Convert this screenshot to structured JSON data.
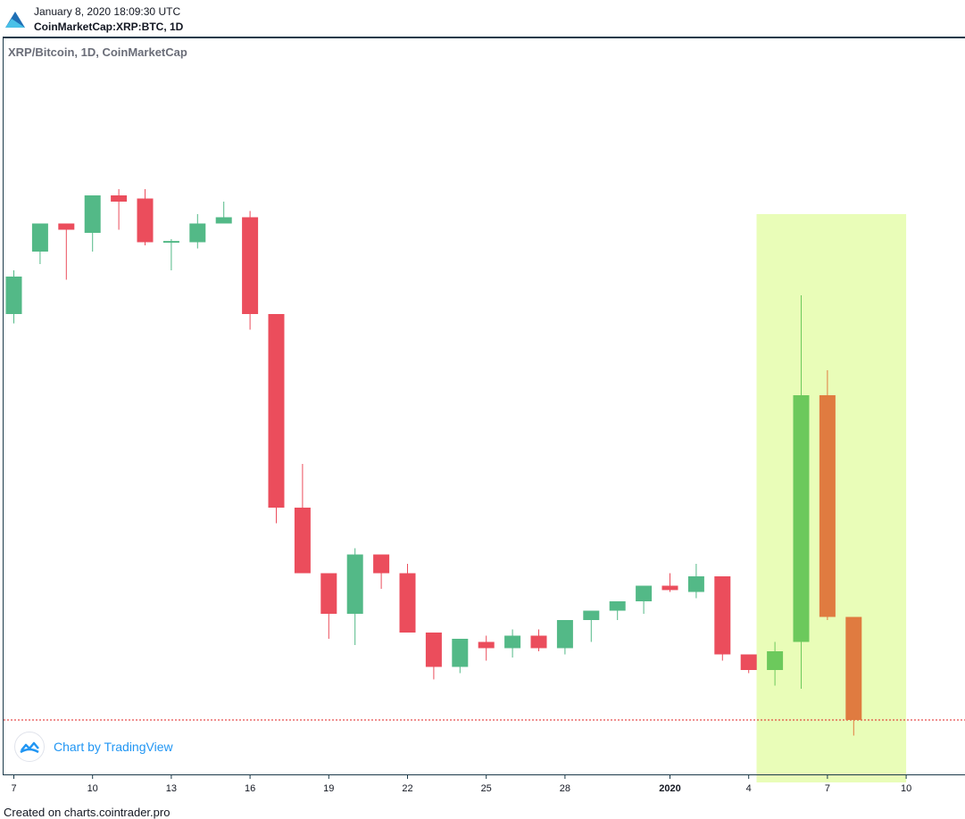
{
  "header": {
    "datetime": "January 8, 2020 18:09:30 UTC",
    "symbol": "CoinMarketCap:XRP:BTC, 1D"
  },
  "footer": {
    "text": "Created on charts.cointrader.pro"
  },
  "watermark": {
    "label": "Chart by TradingView"
  },
  "colors": {
    "up": "#53b987",
    "down": "#eb4d5c",
    "highlight_up": "#6cc95c",
    "highlight_down": "#e07b40",
    "highlight_zone": "#e9fdb8",
    "price_line": "#e02020",
    "frame": "#1c3a4a"
  },
  "chart_data": {
    "type": "candlestick",
    "title": "XRP/Bitcoin, 1D, CoinMarketCap",
    "x_tick_labels": [
      "7",
      "10",
      "13",
      "16",
      "19",
      "22",
      "25",
      "28",
      "2020",
      "4",
      "7",
      "10"
    ],
    "x_tick_days": [
      0,
      3,
      6,
      9,
      12,
      15,
      18,
      21,
      25,
      28,
      31,
      34
    ],
    "y_axis": {
      "visible": false,
      "range_units": "relative price",
      "ylim": [
        0,
        100
      ]
    },
    "grid": false,
    "last_price_line": 8,
    "highlight_zone": {
      "from_day": 28.3,
      "to_day": 34,
      "low": -2,
      "high": 89
    },
    "candles": [
      {
        "day": 0,
        "o": 73,
        "h": 80,
        "l": 71.5,
        "c": 79
      },
      {
        "day": 1,
        "o": 83,
        "h": 87,
        "l": 81,
        "c": 87.5
      },
      {
        "day": 2,
        "o": 87.5,
        "h": 87.5,
        "l": 78.5,
        "c": 86.5
      },
      {
        "day": 3,
        "o": 86,
        "h": 92,
        "l": 83,
        "c": 92
      },
      {
        "day": 4,
        "o": 92,
        "h": 93,
        "l": 86.5,
        "c": 91
      },
      {
        "day": 5,
        "o": 91.5,
        "h": 93,
        "l": 84,
        "c": 84.5
      },
      {
        "day": 6,
        "o": 84.5,
        "h": 85,
        "l": 80,
        "c": 84.7
      },
      {
        "day": 7,
        "o": 84.5,
        "h": 89,
        "l": 83.5,
        "c": 87.5
      },
      {
        "day": 8,
        "o": 87.5,
        "h": 91,
        "l": 87.5,
        "c": 88.5
      },
      {
        "day": 9,
        "o": 88.5,
        "h": 89.5,
        "l": 70.5,
        "c": 73
      },
      {
        "day": 10,
        "o": 73,
        "h": 73,
        "l": 39.5,
        "c": 42
      },
      {
        "day": 11,
        "o": 42,
        "h": 49,
        "l": 31.5,
        "c": 31.5
      },
      {
        "day": 12,
        "o": 31.5,
        "h": 31.5,
        "l": 21,
        "c": 25
      },
      {
        "day": 13,
        "o": 25,
        "h": 35.5,
        "l": 20,
        "c": 34.5
      },
      {
        "day": 14,
        "o": 34.5,
        "h": 34.5,
        "l": 29,
        "c": 31.5
      },
      {
        "day": 15,
        "o": 31.5,
        "h": 33,
        "l": 22,
        "c": 22
      },
      {
        "day": 16,
        "o": 22,
        "h": 22,
        "l": 14.5,
        "c": 16.5
      },
      {
        "day": 17,
        "o": 16.5,
        "h": 20.5,
        "l": 15.5,
        "c": 21
      },
      {
        "day": 18,
        "o": 20.5,
        "h": 21.5,
        "l": 17.5,
        "c": 19.5
      },
      {
        "day": 19,
        "o": 19.5,
        "h": 22.5,
        "l": 18,
        "c": 21.5
      },
      {
        "day": 20,
        "o": 21.5,
        "h": 22.5,
        "l": 19,
        "c": 19.5
      },
      {
        "day": 21,
        "o": 19.5,
        "h": 24,
        "l": 18.5,
        "c": 24
      },
      {
        "day": 22,
        "o": 24,
        "h": 25.5,
        "l": 20.5,
        "c": 25.5
      },
      {
        "day": 23,
        "o": 25.5,
        "h": 27,
        "l": 24,
        "c": 27
      },
      {
        "day": 24,
        "o": 27,
        "h": 29.5,
        "l": 25,
        "c": 29.5
      },
      {
        "day": 25,
        "o": 29.5,
        "h": 31.5,
        "l": 28.5,
        "c": 28.8
      },
      {
        "day": 26,
        "o": 28.5,
        "h": 33,
        "l": 27.5,
        "c": 31
      },
      {
        "day": 27,
        "o": 31,
        "h": 31,
        "l": 17.5,
        "c": 18.5
      },
      {
        "day": 28,
        "o": 18.5,
        "h": 18.5,
        "l": 15.5,
        "c": 16
      },
      {
        "day": 29,
        "o": 16,
        "h": 20.5,
        "l": 13.5,
        "c": 19
      },
      {
        "day": 30,
        "o": 20.5,
        "h": 76,
        "l": 13,
        "c": 60
      },
      {
        "day": 31,
        "o": 60,
        "h": 64,
        "l": 24,
        "c": 24.5
      },
      {
        "day": 32,
        "o": 24.5,
        "h": 24.5,
        "l": 5.5,
        "c": 8
      }
    ],
    "highlight_days": [
      29,
      30,
      31,
      32
    ]
  }
}
